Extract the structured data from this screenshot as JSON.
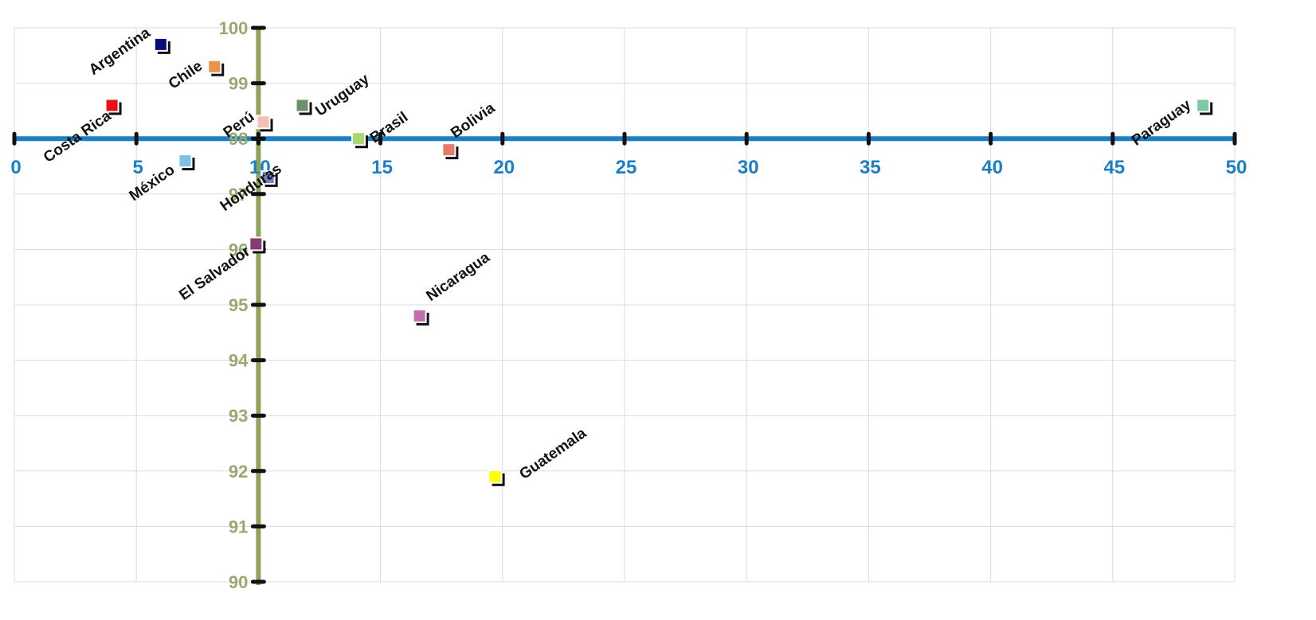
{
  "chart_data": {
    "type": "scatter",
    "title": "",
    "xlabel": "",
    "ylabel": "",
    "xlim": [
      0,
      50
    ],
    "ylim": [
      90,
      100
    ],
    "x_ticks": [
      "0",
      "5",
      "10",
      "15",
      "20",
      "25",
      "30",
      "35",
      "40",
      "45",
      "50"
    ],
    "y_ticks": [
      "90",
      "91",
      "92",
      "93",
      "94",
      "95",
      "96",
      "97",
      "98",
      "99",
      "100"
    ],
    "x_axis_at_y": 98,
    "y_axis_at_x": 10,
    "grid": true,
    "colors": {
      "x_axis": "#1a7fc4",
      "x_tick_labels": "#1a7fc4",
      "y_axis": "#8fa35a",
      "y_tick_labels": "#9aa870",
      "marker_shadow": "#111111"
    },
    "points": [
      {
        "name": "Argentina",
        "x": 6.0,
        "y": 99.7,
        "color": "#0a0a80"
      },
      {
        "name": "Chile",
        "x": 8.2,
        "y": 99.3,
        "color": "#e8954a"
      },
      {
        "name": "Costa Rica",
        "x": 4.0,
        "y": 98.6,
        "color": "#e81010"
      },
      {
        "name": "Uruguay",
        "x": 11.8,
        "y": 98.6,
        "color": "#6e8e6e"
      },
      {
        "name": "Perú",
        "x": 10.2,
        "y": 98.3,
        "color": "#f5c0b4"
      },
      {
        "name": "Brasil",
        "x": 14.1,
        "y": 98.0,
        "color": "#a8d870"
      },
      {
        "name": "Bolivia",
        "x": 17.8,
        "y": 97.8,
        "color": "#e77b68"
      },
      {
        "name": "México",
        "x": 7.0,
        "y": 97.6,
        "color": "#7ec0e8"
      },
      {
        "name": "Honduras",
        "x": 10.4,
        "y": 97.3,
        "color": "#6f7fbf"
      },
      {
        "name": "El Salvador",
        "x": 9.9,
        "y": 96.1,
        "color": "#883a72"
      },
      {
        "name": "Nicaragua",
        "x": 16.6,
        "y": 94.8,
        "color": "#c070b0"
      },
      {
        "name": "Guatemala",
        "x": 19.7,
        "y": 91.9,
        "color": "#ffff00"
      },
      {
        "name": "Paraguay",
        "x": 48.7,
        "y": 98.6,
        "color": "#7ec8a4"
      }
    ]
  }
}
